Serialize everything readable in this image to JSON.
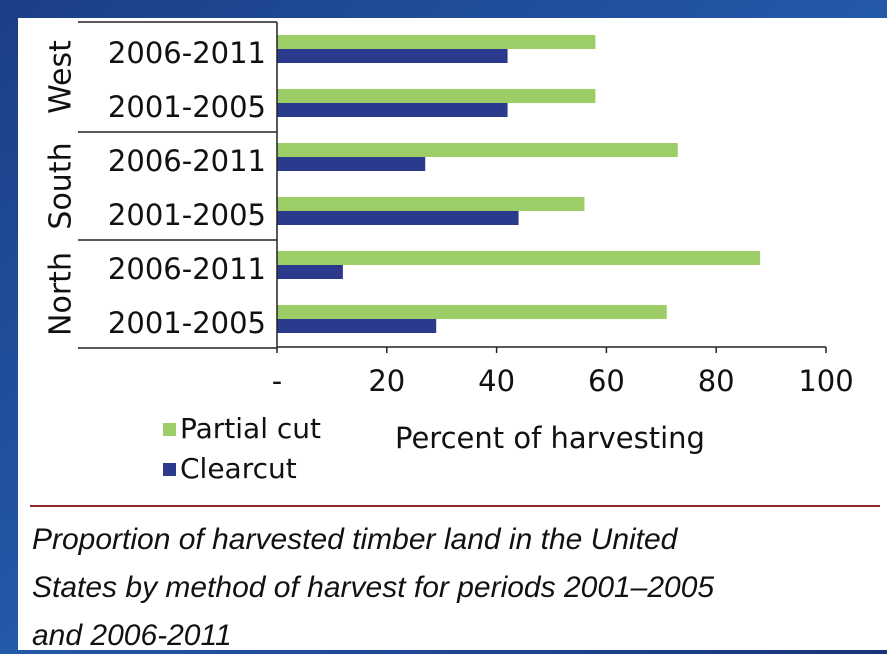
{
  "chart_data": {
    "type": "bar",
    "orientation": "horizontal",
    "groups": [
      {
        "name": "West",
        "categories": [
          "2006-2011",
          "2001-2005"
        ]
      },
      {
        "name": "South",
        "categories": [
          "2006-2011",
          "2001-2005"
        ]
      },
      {
        "name": "North",
        "categories": [
          "2006-2011",
          "2001-2005"
        ]
      }
    ],
    "series": [
      {
        "name": "Partial cut",
        "color": "#9dcd66",
        "values": [
          58,
          58,
          73,
          56,
          88,
          71
        ]
      },
      {
        "name": "Clearcut",
        "color": "#2b3a8c",
        "values": [
          42,
          42,
          27,
          44,
          12,
          29
        ]
      }
    ],
    "xlim": [
      0,
      100
    ],
    "xticks": [
      {
        "value": 0,
        "label": "-"
      },
      20,
      40,
      60,
      80,
      100
    ],
    "xlabel": "Percent of harvesting",
    "legend": "bottom-left",
    "caption": [
      "Proportion of harvested timber land in the United",
      "States by method of harvest for periods 2001–2005",
      "and 2006-2011"
    ]
  }
}
